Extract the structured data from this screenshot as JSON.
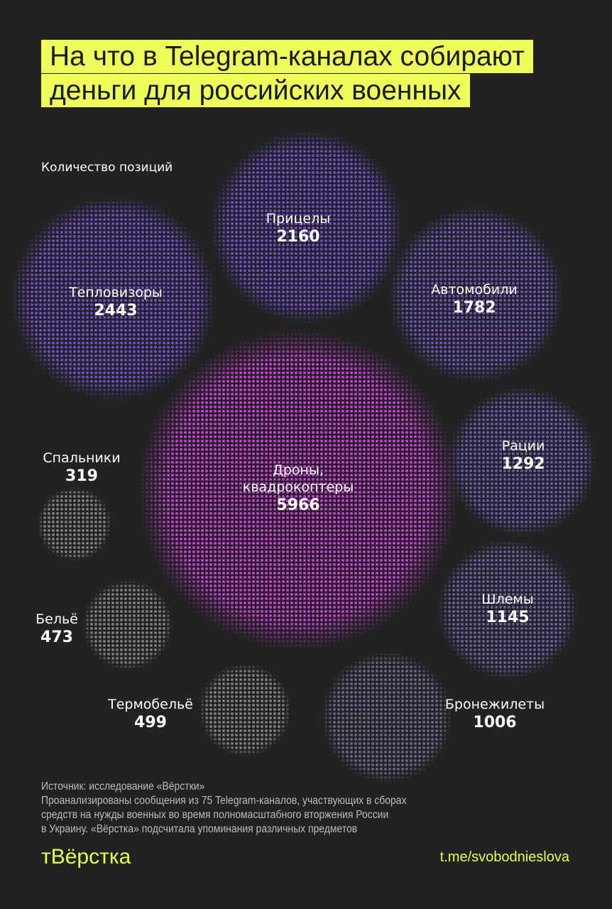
{
  "title": "На что в Telegram-каналах собирают деньги для российских военных",
  "subtitle": "Количество позиций",
  "chart_data": {
    "type": "bubble",
    "title": "На что в Telegram-каналах собирают деньги для российских военных",
    "unit": "Количество позиций",
    "items": [
      {
        "label": "Дроны, квадрокоптеры",
        "value": 5966,
        "color": "#c83ad8"
      },
      {
        "label": "Тепловизоры",
        "value": 2443,
        "color": "#6e4ccc"
      },
      {
        "label": "Прицелы",
        "value": 2160,
        "color": "#6e4ccc"
      },
      {
        "label": "Автомобили",
        "value": 1782,
        "color": "#6a52b8"
      },
      {
        "label": "Рации",
        "value": 1292,
        "color": "#6a56ac"
      },
      {
        "label": "Шлемы",
        "value": 1145,
        "color": "#6a5aa2"
      },
      {
        "label": "Бронежилеты",
        "value": 1006,
        "color": "#6a6284"
      },
      {
        "label": "Термобельё",
        "value": 499,
        "color": "#7a7a7a"
      },
      {
        "label": "Бельё",
        "value": 473,
        "color": "#7a7a7a"
      },
      {
        "label": "Спальники",
        "value": 319,
        "color": "#7a7a7a"
      }
    ]
  },
  "source": {
    "line1": "Источник: исследование «Вёрстки»",
    "line2": "Проанализированы сообщения из 75 Telegram-каналов, участвующих в сборах",
    "line3": "средств на нужды военных во время полномасштабного вторжения России",
    "line4": "в Украину. «Вёрстка» подсчитала упоминания различных предметов"
  },
  "logo": "тВёрстка",
  "link": "t.me/svobodnieslova"
}
